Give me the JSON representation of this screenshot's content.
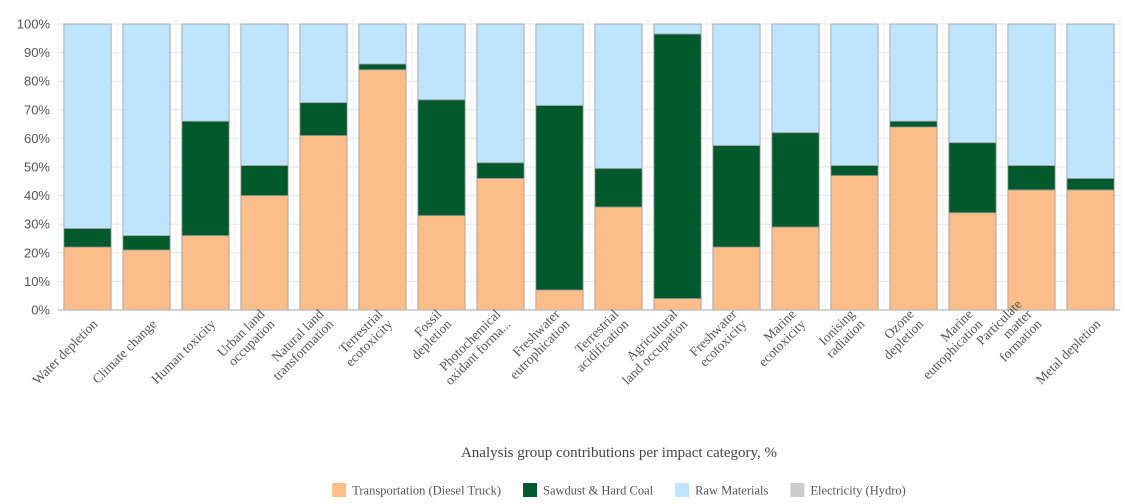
{
  "chart_data": {
    "type": "bar",
    "stacked": true,
    "orientation": "vertical",
    "xlabel": "Analysis group contributions per impact category, %",
    "ylabel": "",
    "ylim": [
      0,
      100
    ],
    "y_ticks": [
      "0%",
      "10%",
      "20%",
      "30%",
      "40%",
      "50%",
      "60%",
      "70%",
      "80%",
      "90%",
      "100%"
    ],
    "grid": true,
    "legend_position": "bottom",
    "categories": [
      [
        "Water depletion"
      ],
      [
        "Climate change"
      ],
      [
        "Human toxicity"
      ],
      [
        "Urban land",
        "occupation"
      ],
      [
        "Natural land",
        "transformation"
      ],
      [
        "Terrestrial",
        "ecotoxicity"
      ],
      [
        "Fossil",
        "depletion"
      ],
      [
        "Photochemical",
        "oxidant forma..."
      ],
      [
        "Freshwater",
        "eutrophication"
      ],
      [
        "Terrestrial",
        "acidification"
      ],
      [
        "Agricultural",
        "land occupation"
      ],
      [
        "Freshwater",
        "ecotoxicity"
      ],
      [
        "Marine",
        "ecotoxicity"
      ],
      [
        "Ionising",
        "radiation"
      ],
      [
        "Ozone",
        "depletion"
      ],
      [
        "Marine",
        "eutrophication"
      ],
      [
        "Particulate",
        "matter",
        "formation"
      ],
      [
        "Metal depletion"
      ]
    ],
    "series": [
      {
        "name": "Transportation (Diesel Truck)",
        "color": "#fbbd8a",
        "values": [
          22,
          21,
          26,
          40,
          61,
          84,
          33,
          46,
          7,
          36,
          4,
          22,
          29,
          47,
          64,
          34,
          42,
          42
        ]
      },
      {
        "name": "Sawdust & Hard Coal",
        "color": "#025a2c",
        "values": [
          6.5,
          5,
          40,
          10.5,
          11.5,
          2,
          40.5,
          5.5,
          64.5,
          13.5,
          92.5,
          35.5,
          33,
          3.5,
          2,
          24.5,
          8.5,
          4
        ]
      },
      {
        "name": "Raw Materials",
        "color": "#bfe4fd",
        "values": [
          71.5,
          74,
          34,
          49.5,
          27.5,
          14,
          26.5,
          48.5,
          28.5,
          50.5,
          3.5,
          42.5,
          38,
          49.5,
          34,
          41.5,
          49.5,
          54
        ]
      },
      {
        "name": "Electricity (Hydro)",
        "color": "#cccccc",
        "values": [
          0,
          0,
          0,
          0,
          0,
          0,
          0,
          0,
          0,
          0,
          0,
          0,
          0,
          0,
          0,
          0,
          0,
          0
        ]
      }
    ]
  }
}
